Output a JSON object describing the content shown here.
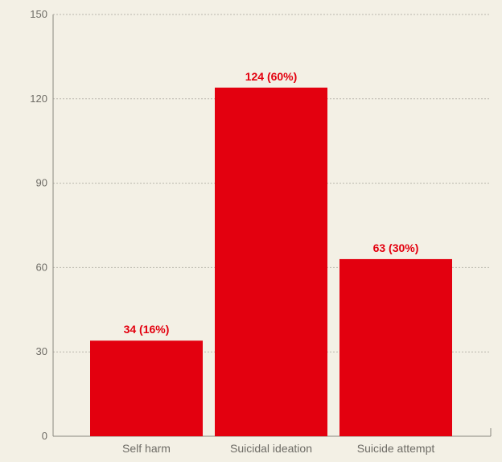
{
  "colors": {
    "background": "#f3f0e5",
    "bar": "#e3000f",
    "grid": "#b9b6ad",
    "axis": "#8a8780",
    "tick_text": "#6e6c66",
    "label_text": "#e3000f"
  },
  "chart_data": {
    "type": "bar",
    "title": "",
    "xlabel": "",
    "ylabel": "",
    "categories": [
      "Self harm",
      "Suicidal ideation",
      "Suicide attempt"
    ],
    "values": [
      34,
      124,
      63
    ],
    "data_labels": [
      "34 (16%)",
      "124 (60%)",
      "63 (30%)"
    ],
    "ylim": [
      0,
      150
    ],
    "yticks": [
      0,
      30,
      60,
      90,
      120,
      150
    ],
    "grid": true,
    "legend": "none"
  }
}
